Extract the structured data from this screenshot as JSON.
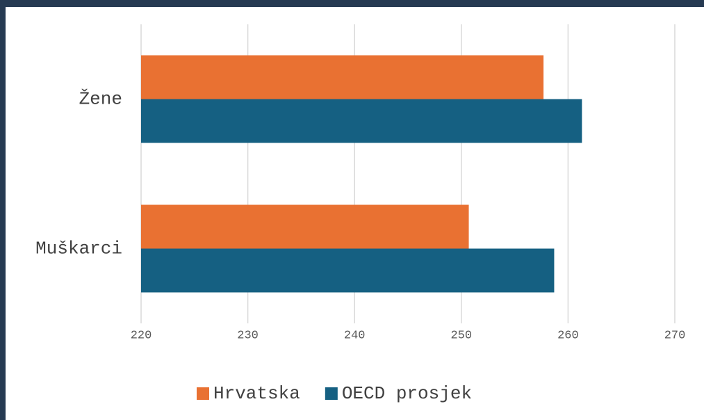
{
  "chart_data": {
    "type": "hbar",
    "categories": [
      "Žene",
      "Muškarci"
    ],
    "series": [
      {
        "name": "Hrvatska",
        "color": "#e97132",
        "values": [
          257.7,
          250.7
        ]
      },
      {
        "name": "OECD prosjek",
        "color": "#156082",
        "values": [
          261.3,
          258.7
        ]
      }
    ],
    "xlim": [
      220,
      270
    ],
    "xticks": [
      220,
      230,
      240,
      250,
      260,
      270
    ],
    "grid": true,
    "legend": "bottom"
  }
}
